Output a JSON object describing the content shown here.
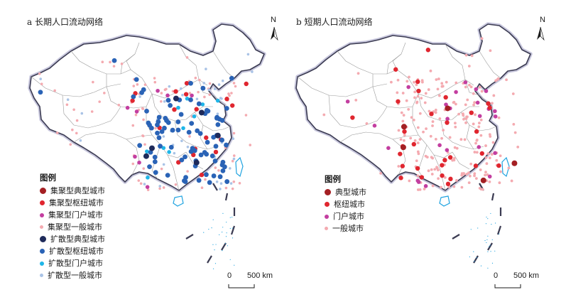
{
  "panels": [
    {
      "title": "a 长期人口流动网络",
      "legend": {
        "title": "图例",
        "items": [
          {
            "label": "集聚型典型城市",
            "color": "#a41f23",
            "size": 9
          },
          {
            "label": "集聚型枢纽城市",
            "color": "#e0262f",
            "size": 7
          },
          {
            "label": "集聚型门户城市",
            "color": "#c33ea0",
            "size": 6
          },
          {
            "label": "集聚型一般城市",
            "color": "#f4aab0",
            "size": 5
          },
          {
            "label": "扩散型典型城市",
            "color": "#1e2a5a",
            "size": 9
          },
          {
            "label": "扩散型枢纽城市",
            "color": "#2a63b6",
            "size": 7
          },
          {
            "label": "扩散型门户城市",
            "color": "#1fb6e8",
            "size": 6
          },
          {
            "label": "扩散型一般城市",
            "color": "#a9c3e6",
            "size": 5
          }
        ]
      },
      "north": "N",
      "scale": {
        "zero": "0",
        "end": "500 km"
      }
    },
    {
      "title": "b 短期人口流动网络",
      "legend": {
        "title": "图例",
        "items": [
          {
            "label": "典型城市",
            "color": "#a41f23",
            "size": 9
          },
          {
            "label": "枢纽城市",
            "color": "#e0262f",
            "size": 7
          },
          {
            "label": "门户城市",
            "color": "#c33ea0",
            "size": 6
          },
          {
            "label": "一般城市",
            "color": "#f4aab0",
            "size": 5
          }
        ]
      },
      "north": "N",
      "scale": {
        "zero": "0",
        "end": "500 km"
      }
    }
  ]
}
